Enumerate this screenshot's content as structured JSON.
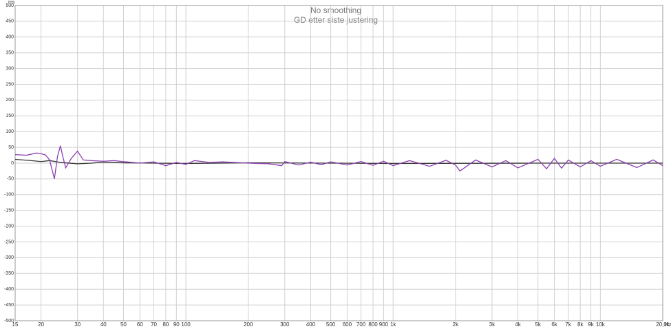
{
  "chart_data": {
    "type": "line",
    "title": "No smoothing",
    "subtitle": "GD etter siste justering",
    "y_unit": "ms",
    "x_unit": "Hz",
    "log_x": true,
    "grid": true,
    "xlim": [
      15,
      20000
    ],
    "ylim": [
      -500,
      500
    ],
    "yticks": [
      -500,
      -450,
      -400,
      -350,
      -300,
      -250,
      -200,
      -150,
      -100,
      -50,
      0,
      50,
      100,
      150,
      200,
      250,
      300,
      350,
      400,
      450,
      500
    ],
    "xticks": [
      15,
      20,
      30,
      40,
      50,
      60,
      70,
      80,
      90,
      100,
      200,
      300,
      400,
      500,
      600,
      700,
      800,
      900,
      {
        "value": 1000,
        "label": "1k"
      },
      {
        "value": 2000,
        "label": "2k"
      },
      {
        "value": 3000,
        "label": "3k"
      },
      {
        "value": 4000,
        "label": "4k"
      },
      {
        "value": 5000,
        "label": "5k"
      },
      {
        "value": 6000,
        "label": "6k"
      },
      {
        "value": 7000,
        "label": "7k"
      },
      {
        "value": 8000,
        "label": "8k"
      },
      {
        "value": 9000,
        "label": "9k"
      },
      {
        "value": 10000,
        "label": "10k"
      },
      {
        "value": 20000,
        "label": "20,0k"
      }
    ],
    "series": [
      {
        "color": "#8b3fb0",
        "x": [
          15,
          17,
          19,
          20,
          21,
          22,
          23.2,
          24,
          24.8,
          25.5,
          26.3,
          28,
          30,
          32,
          35,
          40,
          45,
          50,
          60,
          70,
          80,
          90,
          100,
          110,
          130,
          150,
          200,
          250,
          290,
          300,
          350,
          400,
          450,
          500,
          600,
          700,
          800,
          900,
          1000,
          1200,
          1500,
          1800,
          2000,
          2100,
          2500,
          3000,
          3500,
          4000,
          5000,
          5500,
          6000,
          6500,
          7000,
          8000,
          9000,
          10000,
          12000,
          15000,
          18000,
          20000
        ],
        "values": [
          27,
          25,
          32,
          30,
          26,
          10,
          -50,
          20,
          55,
          20,
          -15,
          15,
          38,
          10,
          8,
          6,
          8,
          5,
          0,
          4,
          -8,
          2,
          -4,
          8,
          2,
          4,
          0,
          -2,
          -8,
          5,
          -6,
          3,
          -5,
          4,
          -6,
          5,
          -7,
          6,
          -8,
          8,
          -10,
          9,
          -6,
          -25,
          10,
          -12,
          8,
          -15,
          12,
          -18,
          15,
          -16,
          10,
          -12,
          8,
          -10,
          12,
          -14,
          10,
          -8
        ]
      },
      {
        "color": "#333333",
        "x": [
          15,
          18,
          20,
          22,
          25,
          30,
          35,
          40,
          50,
          70,
          100,
          200,
          500,
          1000,
          5000,
          20000
        ],
        "values": [
          12,
          8,
          5,
          8,
          2,
          -2,
          0,
          3,
          1,
          0,
          -1,
          1,
          0,
          -1,
          0,
          0
        ]
      }
    ]
  }
}
